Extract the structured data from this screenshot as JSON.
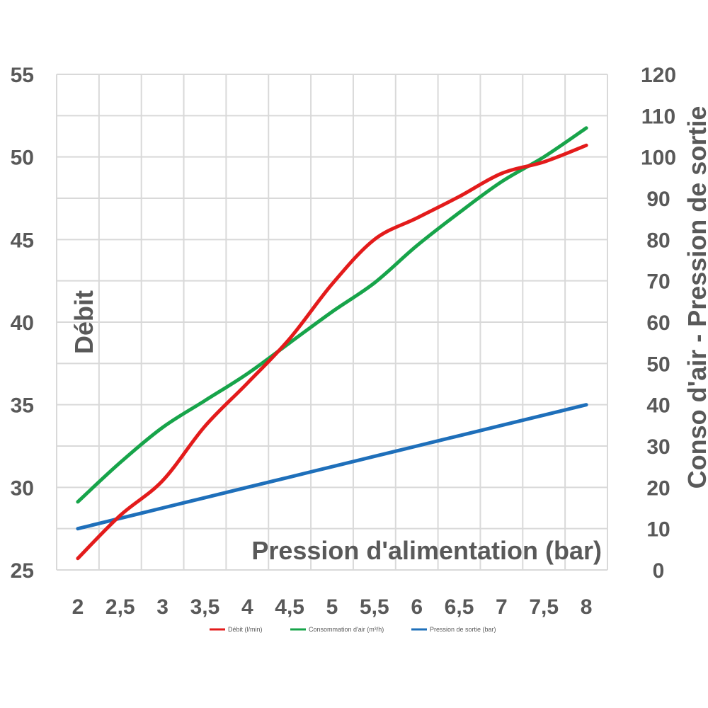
{
  "chart_data": {
    "type": "line",
    "xlabel": "Pression d'alimentation (bar)",
    "ylabel_left": "Débit",
    "ylabel_right": "Conso d'air - Pression de sortie",
    "x": [
      2,
      2.5,
      3,
      3.5,
      4,
      4.5,
      5,
      5.5,
      6,
      6.5,
      7,
      7.5,
      8
    ],
    "x_tick_labels": [
      "2",
      "2,5",
      "3",
      "3,5",
      "4",
      "4,5",
      "5",
      "5,5",
      "6",
      "6,5",
      "7",
      "7,5",
      "8"
    ],
    "y_left": {
      "min": 25,
      "max": 55,
      "ticks": [
        25,
        30,
        35,
        40,
        45,
        50,
        55
      ]
    },
    "y_right": {
      "min": 0,
      "max": 120,
      "ticks": [
        0,
        10,
        20,
        30,
        40,
        50,
        60,
        70,
        80,
        90,
        100,
        110,
        120
      ]
    },
    "grid": true,
    "legend_position": "bottom",
    "series": [
      {
        "name": "Débit (l/min)",
        "axis": "left",
        "color": "#e31b1b",
        "values": [
          25.7,
          28.3,
          30.4,
          33.7,
          36.3,
          39.0,
          42.3,
          45.0,
          46.3,
          47.6,
          49.0,
          49.7,
          50.7
        ]
      },
      {
        "name": "Consommation d'air (m³/h)",
        "axis": "right",
        "color": "#17a44a",
        "values": [
          16.5,
          26.0,
          34.5,
          41.0,
          47.5,
          55.0,
          62.5,
          69.5,
          78.5,
          86.5,
          94.0,
          100.0,
          107.0
        ]
      },
      {
        "name": "Pression de sortie (bar)",
        "axis": "right",
        "color": "#1e6fba",
        "values": [
          10.0,
          12.5,
          15.0,
          17.5,
          20.0,
          22.5,
          25.0,
          27.5,
          30.0,
          32.5,
          35.0,
          37.5,
          40.0
        ]
      }
    ]
  }
}
